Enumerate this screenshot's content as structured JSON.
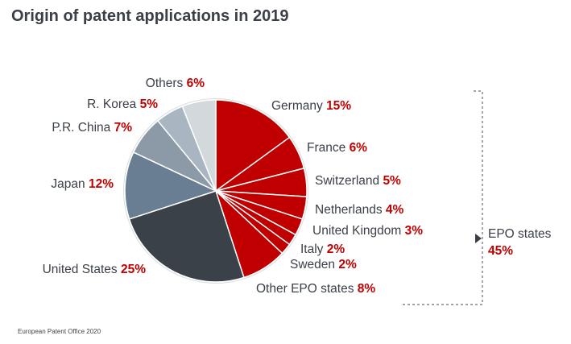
{
  "title": "Origin of patent applications in 2019",
  "footer": "European Patent Office 2020",
  "colors": {
    "epo": "#c00000",
    "slice_border": "#ffffff",
    "label_text": "#3a3f48",
    "percent_text": "#c00000"
  },
  "chart_data": {
    "type": "pie",
    "title": "Origin of patent applications in 2019",
    "start_angle_deg": 0,
    "direction": "clockwise",
    "slices": [
      {
        "label": "Germany",
        "value": 15,
        "display": "15%",
        "color": "#c00000"
      },
      {
        "label": "France",
        "value": 6,
        "display": "6%",
        "color": "#c00000"
      },
      {
        "label": "Switzerland",
        "value": 5,
        "display": "5%",
        "color": "#c00000"
      },
      {
        "label": "Netherlands",
        "value": 4,
        "display": "4%",
        "color": "#c00000"
      },
      {
        "label": "United Kingdom",
        "value": 3,
        "display": "3%",
        "color": "#c00000"
      },
      {
        "label": "Italy",
        "value": 2,
        "display": "2%",
        "color": "#c00000"
      },
      {
        "label": "Sweden",
        "value": 2,
        "display": "2%",
        "color": "#c00000"
      },
      {
        "label": "Other EPO states",
        "value": 8,
        "display": "8%",
        "color": "#c00000"
      },
      {
        "label": "United States",
        "value": 25,
        "display": "25%",
        "color": "#3b4149"
      },
      {
        "label": "Japan",
        "value": 12,
        "display": "12%",
        "color": "#6a7e93"
      },
      {
        "label": "P.R. China",
        "value": 7,
        "display": "7%",
        "color": "#8c9aa8"
      },
      {
        "label": "R. Korea",
        "value": 5,
        "display": "5%",
        "color": "#a9b6c2"
      },
      {
        "label": "Others",
        "value": 6,
        "display": "6%",
        "color": "#d3d8dd"
      }
    ],
    "group": {
      "label": "EPO states",
      "value": 45,
      "display": "45%"
    }
  }
}
